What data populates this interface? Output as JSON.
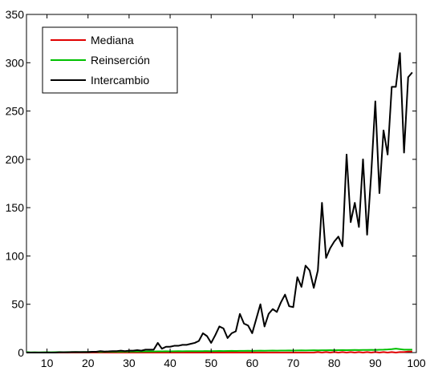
{
  "chart_data": {
    "type": "line",
    "title": "",
    "xlabel": "",
    "ylabel": "",
    "xlim": [
      5,
      100
    ],
    "ylim": [
      0,
      350
    ],
    "xticks": [
      10,
      20,
      30,
      40,
      50,
      60,
      70,
      80,
      90,
      100
    ],
    "yticks": [
      0,
      50,
      100,
      150,
      200,
      250,
      300,
      350
    ],
    "grid": false,
    "legend_position": "top-left",
    "x": [
      5,
      6,
      7,
      8,
      9,
      10,
      11,
      12,
      13,
      14,
      15,
      16,
      17,
      18,
      19,
      20,
      21,
      22,
      23,
      24,
      25,
      26,
      27,
      28,
      29,
      30,
      31,
      32,
      33,
      34,
      35,
      36,
      37,
      38,
      39,
      40,
      41,
      42,
      43,
      44,
      45,
      46,
      47,
      48,
      49,
      50,
      51,
      52,
      53,
      54,
      55,
      56,
      57,
      58,
      59,
      60,
      61,
      62,
      63,
      64,
      65,
      66,
      67,
      68,
      69,
      70,
      71,
      72,
      73,
      74,
      75,
      76,
      77,
      78,
      79,
      80,
      81,
      82,
      83,
      84,
      85,
      86,
      87,
      88,
      89,
      90,
      91,
      92,
      93,
      94,
      95,
      96,
      97,
      98,
      99
    ],
    "series": [
      {
        "name": "Mediana",
        "color": "#e00000",
        "values": [
          0,
          0,
          0,
          0,
          0,
          0,
          0,
          0,
          0,
          0,
          0,
          0,
          0,
          0,
          0,
          0,
          0,
          0,
          0,
          0,
          0,
          0,
          0,
          0,
          0,
          0,
          0,
          0,
          0,
          0,
          0,
          0,
          0,
          0,
          0,
          0,
          0,
          0,
          0,
          0,
          0,
          0,
          0,
          0,
          0,
          0,
          0,
          0,
          0,
          0,
          0,
          0,
          0,
          0,
          0,
          0,
          0,
          0,
          0,
          0,
          0,
          0,
          0,
          0,
          0,
          0,
          0,
          0,
          0,
          0,
          0,
          0.5,
          0,
          0.5,
          0,
          0.5,
          0,
          0.5,
          0,
          0.5,
          0,
          0.5,
          0,
          0.5,
          0,
          0.5,
          0,
          0.5,
          0,
          0.5,
          0,
          0.5,
          0.5,
          1,
          1
        ]
      },
      {
        "name": "Reinserción",
        "color": "#00c000",
        "values": [
          0.5,
          0.2,
          0.3,
          0.2,
          0.3,
          0.4,
          0.3,
          0.4,
          0.5,
          0.4,
          0.5,
          0.5,
          0.6,
          0.5,
          0.6,
          0.6,
          0.7,
          0.7,
          0.8,
          0.7,
          0.8,
          0.9,
          0.8,
          0.9,
          1,
          0.9,
          1,
          1.1,
          1,
          1.1,
          1.2,
          1.1,
          1.2,
          1.2,
          1.3,
          1.2,
          1.3,
          1.4,
          1.3,
          1.4,
          1.5,
          1.4,
          1.5,
          1.5,
          1.6,
          1.5,
          1.6,
          1.7,
          1.6,
          1.7,
          1.8,
          1.7,
          1.8,
          1.8,
          1.9,
          1.8,
          1.9,
          2,
          1.9,
          2,
          2.1,
          2,
          2.1,
          2.1,
          2.2,
          2.1,
          2.2,
          2.3,
          2.2,
          2.3,
          2.4,
          2.3,
          2.4,
          2.4,
          2.5,
          2.4,
          2.5,
          2.6,
          2.5,
          2.6,
          2.7,
          2.6,
          2.7,
          2.7,
          2.8,
          2.7,
          2.9,
          3,
          3.2,
          3.5,
          4,
          3.5,
          3,
          3,
          3
        ]
      },
      {
        "name": "Intercambio",
        "color": "#000000",
        "values": [
          0,
          0,
          0,
          0,
          0,
          0,
          0,
          0,
          0.3,
          0.3,
          0.3,
          0.5,
          0.5,
          0.5,
          0.5,
          0.5,
          0.8,
          0.8,
          1.5,
          1,
          1.2,
          1.5,
          1.5,
          2,
          1.5,
          2,
          2,
          2.5,
          2,
          3,
          3,
          3,
          10,
          4,
          6,
          6,
          7,
          7,
          8,
          8,
          9,
          10,
          12,
          20,
          17,
          10,
          18,
          27,
          25,
          15,
          20,
          22,
          40,
          30,
          28,
          20,
          35,
          50,
          27,
          40,
          45,
          42,
          52,
          60,
          48,
          47,
          78,
          68,
          90,
          85,
          67,
          85,
          155,
          98,
          108,
          115,
          120,
          110,
          205,
          135,
          155,
          130,
          200,
          122,
          185,
          260,
          165,
          230,
          205,
          275,
          275,
          310,
          207,
          285,
          290
        ]
      }
    ]
  }
}
